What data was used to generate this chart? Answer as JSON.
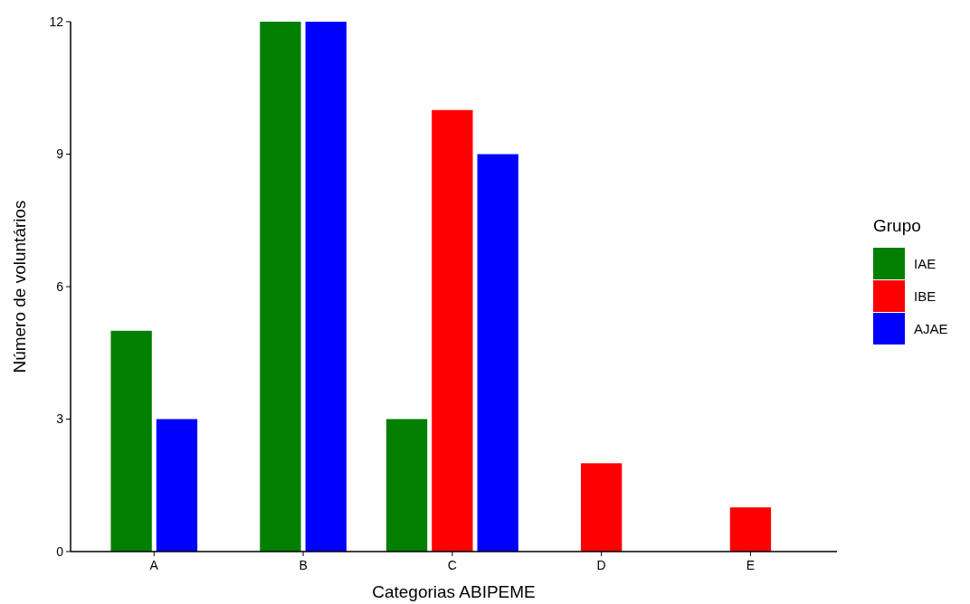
{
  "chart_data": {
    "type": "bar",
    "xlabel": "Categorias ABIPEME",
    "ylabel": "Número de voluntários",
    "legend_title": "Grupo",
    "categories": [
      "A",
      "B",
      "C",
      "D",
      "E"
    ],
    "series": [
      {
        "name": "IAE",
        "color": "#007f00",
        "values": [
          5,
          12,
          3,
          null,
          null
        ]
      },
      {
        "name": "IBE",
        "color": "#ff0000",
        "values": [
          null,
          null,
          10,
          2,
          1
        ]
      },
      {
        "name": "AJAE",
        "color": "#0000ff",
        "values": [
          3,
          12,
          9,
          null,
          null
        ]
      }
    ],
    "ylim": [
      0,
      12
    ],
    "yticks": [
      0,
      3,
      6,
      9,
      12
    ],
    "legend": "right",
    "grid": false
  }
}
